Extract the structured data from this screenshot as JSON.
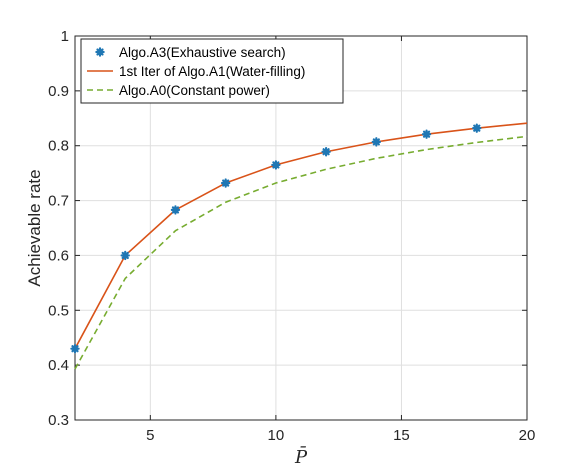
{
  "chart_data": {
    "type": "line",
    "xlabel": "P̄",
    "ylabel": "Achievable rate",
    "xlim": [
      2,
      20
    ],
    "ylim": [
      0.3,
      1
    ],
    "xticks": [
      5,
      10,
      15,
      20
    ],
    "yticks": [
      0.3,
      0.4,
      0.5,
      0.6,
      0.7,
      0.8,
      0.9,
      1
    ],
    "grid": true,
    "legend_position": "top-left",
    "series": [
      {
        "name": "Algo.A3(Exhaustive search)",
        "style": "markers",
        "marker": "asterisk",
        "color": "#1f77b4",
        "x": [
          2,
          4,
          6,
          8,
          10,
          12,
          14,
          16,
          18
        ],
        "y": [
          0.43,
          0.6,
          0.683,
          0.732,
          0.765,
          0.789,
          0.807,
          0.821,
          0.832
        ]
      },
      {
        "name": "1st Iter of Algo.A1(Water-filling)",
        "style": "solid",
        "color": "#d95319",
        "x": [
          2,
          4,
          6,
          8,
          10,
          12,
          14,
          16,
          18,
          20
        ],
        "y": [
          0.43,
          0.6,
          0.683,
          0.732,
          0.765,
          0.789,
          0.807,
          0.821,
          0.832,
          0.841
        ]
      },
      {
        "name": "Algo.A0(Constant power)",
        "style": "dashed",
        "color": "#77ac30",
        "x": [
          2,
          4,
          6,
          8,
          10,
          12,
          14,
          16,
          18,
          20
        ],
        "y": [
          0.393,
          0.558,
          0.645,
          0.697,
          0.732,
          0.757,
          0.777,
          0.793,
          0.806,
          0.817
        ]
      }
    ]
  }
}
